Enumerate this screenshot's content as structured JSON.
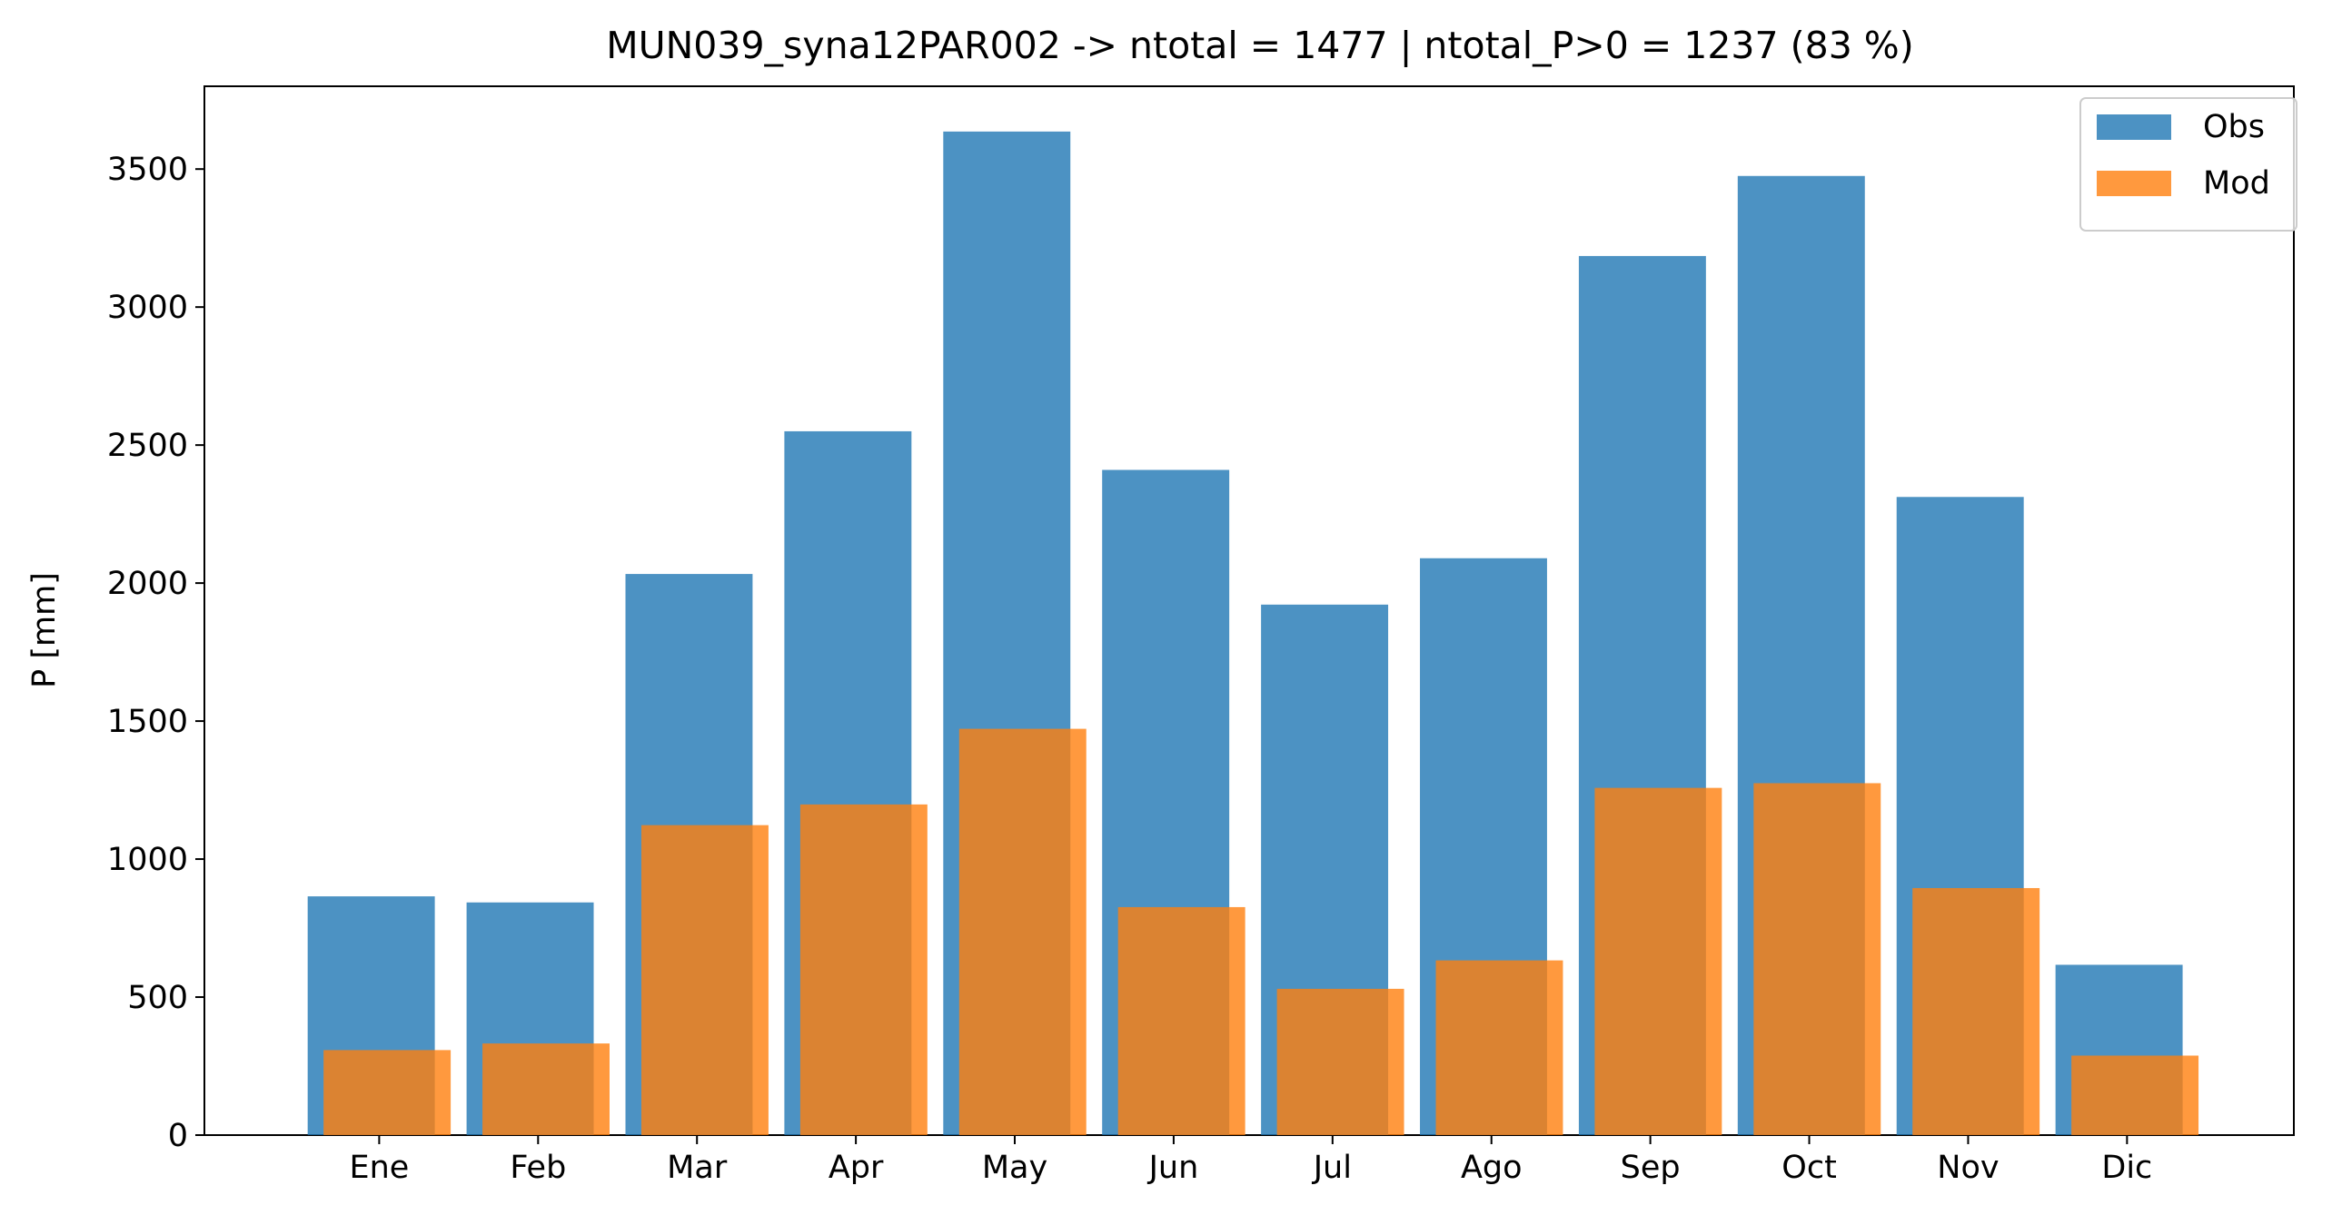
{
  "chart_data": {
    "type": "bar",
    "title": "MUN039_syna12PAR002 -> ntotal = 1477 | ntotal_P>0 = 1237 (83 %)",
    "xlabel": "",
    "ylabel": "P [mm]",
    "ylim": [
      0,
      3800
    ],
    "yticks": [
      0,
      500,
      1000,
      1500,
      2000,
      2500,
      3000,
      3500
    ],
    "categories": [
      "Ene",
      "Feb",
      "Mar",
      "Apr",
      "May",
      "Jun",
      "Jul",
      "Ago",
      "Sep",
      "Oct",
      "Nov",
      "Dic"
    ],
    "series": [
      {
        "name": "Obs",
        "color": "#1f77b4",
        "values": [
          865,
          843,
          2033,
          2550,
          3636,
          2410,
          1922,
          2090,
          3185,
          3475,
          2312,
          617
        ]
      },
      {
        "name": "Mod",
        "color": "#ff7f0e",
        "values": [
          308,
          332,
          1123,
          1198,
          1472,
          826,
          530,
          633,
          1258,
          1275,
          895,
          288
        ]
      }
    ],
    "grid": false,
    "legend": "top-right"
  }
}
